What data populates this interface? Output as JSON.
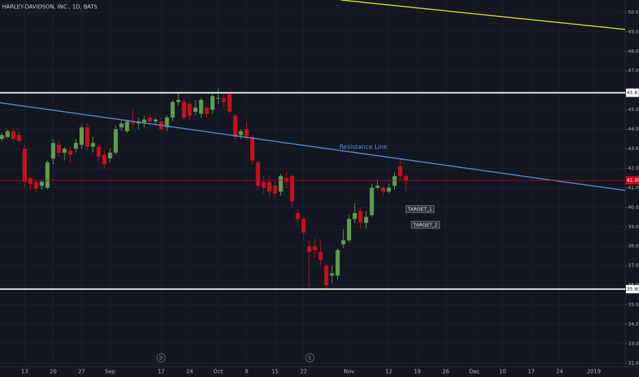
{
  "chart_data": {
    "type": "candlestick",
    "title": "HARLEY-DAVIDSON, INC., 1D, BATS",
    "up_color": "#5f9e4c",
    "down_color": "#c8101c",
    "categories": [
      null,
      null,
      null,
      null,
      "13",
      null,
      null,
      null,
      null,
      "20",
      null,
      null,
      null,
      null,
      "27",
      null,
      null,
      null,
      null,
      "Sep",
      null,
      null,
      null,
      null,
      null,
      null,
      null,
      null,
      "17",
      null,
      null,
      null,
      null,
      "24",
      null,
      null,
      null,
      null,
      "Oct",
      null,
      null,
      null,
      null,
      "8",
      null,
      null,
      null,
      null,
      "15",
      null,
      null,
      null,
      null,
      "22",
      null,
      null,
      null,
      null,
      null,
      null,
      null,
      "Nov",
      null,
      null,
      null,
      null,
      null,
      null,
      "12",
      null,
      null,
      null,
      null,
      "19",
      null,
      null,
      null,
      null,
      "26",
      null,
      null,
      null,
      null,
      "Dec",
      null,
      null,
      null,
      null,
      "10",
      null,
      null,
      null,
      null,
      "17",
      null,
      null,
      null,
      null,
      "24",
      null,
      null,
      null,
      null,
      null,
      "2019",
      null,
      null,
      null,
      null,
      null
    ],
    "open": [
      43.5,
      43.6,
      43.9,
      43.7,
      43.0,
      41.5,
      41.3,
      41.1,
      41.0,
      42.5,
      43.2,
      42.8,
      42.9,
      43.0,
      43.2,
      44.1,
      43.1,
      43.1,
      42.7,
      42.5,
      42.8,
      44.1,
      43.9,
      44.4,
      44.3,
      44.3,
      44.6,
      44.4,
      44.4,
      44.1,
      44.6,
      45.4,
      45.4,
      45.3,
      44.9,
      44.8,
      45.1,
      45.0,
      45.6,
      45.6,
      45.8,
      44.7,
      43.7,
      44.0,
      43.6,
      42.3,
      41.3,
      41.3,
      41.1,
      40.8,
      41.5,
      41.6,
      39.7,
      39.4,
      38.0,
      38.0,
      37.7,
      37.0,
      36.5,
      36.5,
      38.1,
      38.3,
      39.4,
      39.8,
      39.2,
      39.6,
      41.0,
      41.0,
      40.8,
      41.1,
      42.1,
      41.6,
      null,
      null,
      null,
      null,
      null,
      null,
      null,
      null,
      null,
      null,
      null,
      null,
      null,
      null,
      null,
      null,
      null,
      null,
      null,
      null,
      null,
      null,
      null,
      null,
      null,
      null,
      null,
      null,
      null,
      null,
      null,
      null,
      null,
      null,
      null,
      null,
      null,
      null
    ],
    "high": [
      43.8,
      44.0,
      44.0,
      43.9,
      43.2,
      41.6,
      41.4,
      41.4,
      42.4,
      43.5,
      43.4,
      43.1,
      43.1,
      43.5,
      44.2,
      44.3,
      43.6,
      43.3,
      42.9,
      43.0,
      44.2,
      44.5,
      44.5,
      45.0,
      44.6,
      44.7,
      44.8,
      44.6,
      44.6,
      44.7,
      45.5,
      45.9,
      45.6,
      45.4,
      45.5,
      45.6,
      45.2,
      45.8,
      46.1,
      45.8,
      45.9,
      44.8,
      44.0,
      44.4,
      43.7,
      42.4,
      41.6,
      41.6,
      41.3,
      41.7,
      41.8,
      41.7,
      39.9,
      39.5,
      38.3,
      38.4,
      38.3,
      37.1,
      37.0,
      37.9,
      38.9,
      39.6,
      40.2,
      40.0,
      39.8,
      41.2,
      41.4,
      41.1,
      41.2,
      41.8,
      42.5,
      41.7,
      null,
      null,
      null,
      null,
      null,
      null,
      null,
      null,
      null,
      null,
      null,
      null,
      null,
      null,
      null,
      null,
      null,
      null,
      null,
      null,
      null,
      null,
      null,
      null,
      null,
      null,
      null,
      null,
      null,
      null,
      null,
      null,
      null,
      null,
      null,
      null,
      null,
      null
    ],
    "low": [
      43.4,
      43.5,
      43.3,
      43.2,
      41.0,
      40.9,
      40.8,
      40.9,
      40.9,
      42.2,
      42.6,
      42.4,
      42.3,
      42.8,
      43.0,
      42.9,
      42.8,
      42.4,
      42.0,
      42.3,
      42.7,
      43.9,
      43.8,
      44.1,
      44.0,
      44.1,
      44.2,
      44.2,
      43.9,
      43.9,
      44.4,
      45.2,
      44.5,
      44.5,
      44.7,
      44.6,
      44.6,
      44.8,
      45.3,
      45.1,
      44.8,
      43.4,
      43.5,
      43.4,
      42.2,
      40.9,
      40.7,
      40.5,
      40.5,
      40.6,
      41.0,
      40.0,
      39.1,
      38.3,
      35.9,
      37.4,
      37.0,
      35.8,
      36.1,
      36.3,
      37.9,
      38.2,
      39.2,
      38.9,
      38.9,
      39.5,
      40.9,
      40.6,
      40.7,
      40.9,
      41.4,
      40.8,
      null,
      null,
      null,
      null,
      null,
      null,
      null,
      null,
      null,
      null,
      null,
      null,
      null,
      null,
      null,
      null,
      null,
      null,
      null,
      null,
      null,
      null,
      null,
      null,
      null,
      null,
      null,
      null,
      null,
      null,
      null,
      null,
      null,
      null,
      null,
      null,
      null,
      null
    ],
    "close": [
      43.7,
      43.9,
      43.5,
      43.4,
      41.3,
      41.2,
      40.95,
      41.3,
      42.3,
      43.3,
      42.8,
      43.0,
      42.7,
      43.3,
      44.1,
      43.1,
      43.3,
      42.6,
      42.2,
      42.8,
      44.0,
      44.3,
      44.4,
      44.3,
      44.4,
      44.5,
      44.4,
      44.5,
      44.0,
      44.6,
      45.4,
      45.5,
      44.6,
      44.7,
      45.1,
      45.5,
      44.8,
      45.7,
      45.6,
      45.4,
      44.9,
      43.6,
      43.9,
      43.6,
      42.4,
      41.1,
      41.0,
      40.8,
      40.7,
      41.6,
      41.3,
      40.3,
      39.4,
      38.7,
      37.7,
      37.8,
      37.3,
      36.0,
      36.6,
      37.8,
      38.3,
      39.4,
      39.7,
      39.2,
      39.5,
      41.0,
      41.1,
      40.8,
      41.0,
      41.6,
      41.6,
      41.38,
      null,
      null,
      null,
      null,
      null,
      null,
      null,
      null,
      null,
      null,
      null,
      null,
      null,
      null,
      null,
      null,
      null,
      null,
      null,
      null,
      null,
      null,
      null,
      null,
      null,
      null,
      null,
      null,
      null,
      null,
      null,
      null,
      null,
      null,
      null,
      null,
      null,
      null
    ],
    "ylim": [
      31.82,
      50.63
    ],
    "yticks": [
      {
        "value": 32,
        "label": "32.00"
      },
      {
        "value": 33,
        "label": "33.00"
      },
      {
        "value": 34,
        "label": "34.00"
      },
      {
        "value": 35,
        "label": "35.00"
      },
      {
        "value": 36,
        "label": "36.00"
      },
      {
        "value": 37,
        "label": "37.00"
      },
      {
        "value": 38,
        "label": "38.00"
      },
      {
        "value": 39,
        "label": "39.00"
      },
      {
        "value": 40,
        "label": "40.00"
      },
      {
        "value": 41,
        "label": "41.00"
      },
      {
        "value": 42,
        "label": "42.00"
      },
      {
        "value": 43,
        "label": "43.00"
      },
      {
        "value": 44,
        "label": "44.00"
      },
      {
        "value": 45,
        "label": "45.00"
      },
      {
        "value": 46,
        "label": "46.00"
      },
      {
        "value": 47,
        "label": "47.00"
      },
      {
        "value": 48,
        "label": "48.00"
      },
      {
        "value": 49,
        "label": "49.00"
      },
      {
        "value": 50,
        "label": "50.00"
      }
    ],
    "grid": true,
    "price_lines": [
      {
        "value": 45.87,
        "label": "45.87",
        "color": "#ffffff"
      },
      {
        "value": 35.8,
        "label": "35.80",
        "color": "#ffffff"
      },
      {
        "value": 41.38,
        "label": "41.38",
        "color": "#d0021b"
      }
    ],
    "trendlines": [
      {
        "name": "Resistance Line",
        "color": "#5b8fd6",
        "values": [
          45.36,
          40.86
        ]
      },
      {
        "color": "#e8e02a",
        "values": [
          50.63,
          49.12
        ]
      }
    ],
    "targets": [
      "TARGET_1",
      "TARGET_2"
    ],
    "events": [
      "D",
      "E"
    ]
  }
}
